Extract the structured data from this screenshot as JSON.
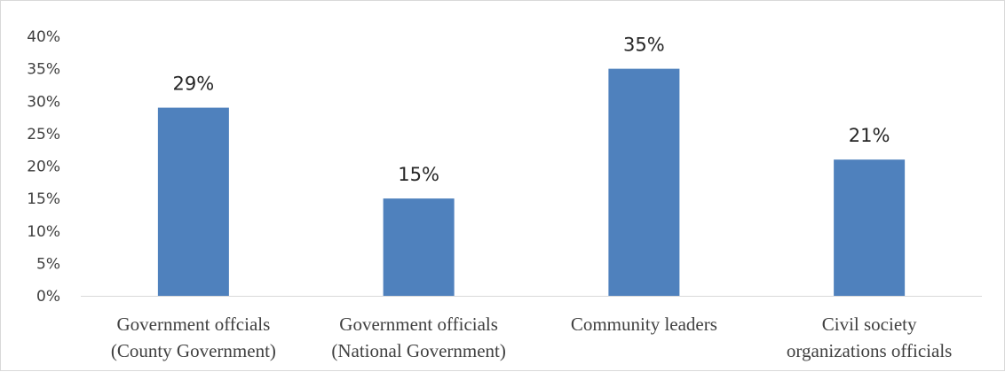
{
  "chart_data": {
    "type": "bar",
    "categories": [
      [
        "Government offcials",
        "(County Government)"
      ],
      [
        "Government officials",
        "(National Government)"
      ],
      [
        "Community leaders"
      ],
      [
        "Civil society",
        "organizations officials"
      ]
    ],
    "values": [
      29,
      15,
      35,
      21
    ],
    "data_labels": [
      "29%",
      "15%",
      "35%",
      "21%"
    ],
    "y_ticks": [
      "0%",
      "5%",
      "10%",
      "15%",
      "20%",
      "25%",
      "30%",
      "35%",
      "40%"
    ],
    "ylim": [
      0,
      40
    ],
    "grid": false,
    "legend": "none",
    "bar_color": "#4f81bd",
    "axis_color": "#d9d9d9"
  }
}
